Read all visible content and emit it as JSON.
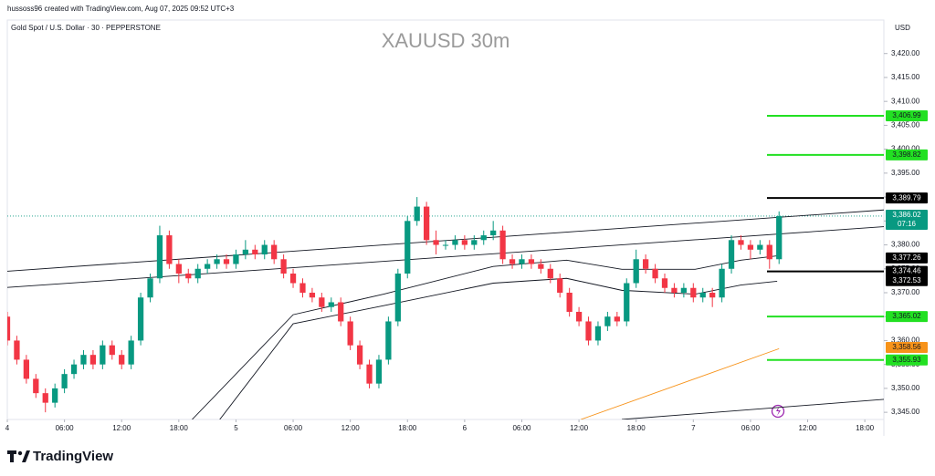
{
  "header": "hussoss96 created with TradingView.com, Aug 07, 2025 09:52 UTC+3",
  "brand": "TradingView",
  "chart_data": {
    "type": "candlestick",
    "title": "XAUUSD 30m",
    "subtitle": "Gold Spot / U.S. Dollar · 30 · PEPPERSTONE",
    "currency": "USD",
    "up_color": "#089981",
    "down_color": "#f23645",
    "open": [
      3365,
      3360,
      3356,
      3352,
      3349,
      3347,
      3350,
      3353,
      3355,
      3357,
      3355,
      3359,
      3357,
      3355,
      3360,
      3369,
      3373,
      3382,
      3376,
      3374,
      3373,
      3375,
      3376,
      3377,
      3376,
      3378,
      3379,
      3378,
      3380,
      3377,
      3374,
      3372,
      3370,
      3369,
      3367,
      3368,
      3364,
      3359,
      3355,
      3351,
      3356,
      3364,
      3374,
      3385,
      3388,
      3381,
      3380,
      3380,
      3381,
      3380,
      3381,
      3382,
      3383,
      3377,
      3376,
      3377,
      3376,
      3375,
      3373,
      3370,
      3366,
      3364,
      3360,
      3363,
      3365,
      3364,
      3372,
      3377,
      3375,
      3373,
      3371,
      3370,
      3371,
      3369,
      3370,
      3369,
      3375,
      3381,
      3380,
      3379,
      3380,
      3377
    ],
    "high": [
      3366,
      3361,
      3357,
      3353,
      3350,
      3351,
      3354,
      3356,
      3358,
      3358,
      3360,
      3360,
      3358,
      3361,
      3370,
      3374,
      3384,
      3383,
      3377,
      3375,
      3376,
      3377,
      3378,
      3378,
      3379,
      3381,
      3380,
      3381,
      3381,
      3378,
      3375,
      3373,
      3371,
      3370,
      3369,
      3369,
      3365,
      3360,
      3356,
      3357,
      3365,
      3375,
      3386,
      3390,
      3389,
      3383,
      3381,
      3382,
      3382,
      3382,
      3383,
      3385,
      3384,
      3378,
      3378,
      3378,
      3377,
      3376,
      3374,
      3371,
      3367,
      3365,
      3364,
      3366,
      3366,
      3373,
      3379,
      3378,
      3376,
      3374,
      3372,
      3372,
      3372,
      3371,
      3371,
      3376,
      3382,
      3382,
      3381,
      3381,
      3381,
      3387
    ],
    "low": [
      3359,
      3355,
      3351,
      3348,
      3345,
      3346,
      3349,
      3352,
      3354,
      3354,
      3354,
      3356,
      3354,
      3354,
      3359,
      3368,
      3372,
      3375,
      3372,
      3372,
      3372,
      3374,
      3375,
      3375,
      3375,
      3377,
      3377,
      3377,
      3376,
      3373,
      3371,
      3369,
      3368,
      3366,
      3366,
      3363,
      3358,
      3354,
      3350,
      3350,
      3355,
      3363,
      3373,
      3384,
      3380,
      3378,
      3379,
      3379,
      3379,
      3379,
      3380,
      3381,
      3376,
      3375,
      3375,
      3375,
      3374,
      3372,
      3369,
      3365,
      3363,
      3359,
      3359,
      3362,
      3363,
      3363,
      3371,
      3374,
      3372,
      3370,
      3369,
      3369,
      3368,
      3368,
      3367,
      3368,
      3374,
      3379,
      3377,
      3378,
      3375,
      3376
    ],
    "close": [
      3360,
      3356,
      3352,
      3349,
      3347,
      3350,
      3353,
      3355,
      3357,
      3355,
      3359,
      3357,
      3355,
      3360,
      3369,
      3373,
      3382,
      3376,
      3374,
      3373,
      3375,
      3376,
      3377,
      3376,
      3378,
      3379,
      3378,
      3380,
      3377,
      3374,
      3372,
      3370,
      3369,
      3367,
      3368,
      3364,
      3359,
      3355,
      3351,
      3356,
      3364,
      3374,
      3385,
      3388,
      3381,
      3380,
      3380,
      3381,
      3380,
      3381,
      3382,
      3383,
      3377,
      3376,
      3377,
      3376,
      3375,
      3373,
      3370,
      3366,
      3364,
      3360,
      3363,
      3365,
      3364,
      3372,
      3377,
      3375,
      3373,
      3371,
      3370,
      3371,
      3369,
      3370,
      3369,
      3375,
      3381,
      3380,
      3379,
      3380,
      3377,
      3386.02
    ],
    "xlim": [
      0,
      92
    ],
    "xticks": [
      {
        "value": 0,
        "label": "4"
      },
      {
        "value": 6,
        "label": "06:00"
      },
      {
        "value": 12,
        "label": "12:00"
      },
      {
        "value": 18,
        "label": "18:00"
      },
      {
        "value": 24,
        "label": "5"
      },
      {
        "value": 30,
        "label": "06:00"
      },
      {
        "value": 36,
        "label": "12:00"
      },
      {
        "value": 42,
        "label": "18:00"
      },
      {
        "value": 48,
        "label": "6"
      },
      {
        "value": 54,
        "label": "06:00"
      },
      {
        "value": 60,
        "label": "12:00"
      },
      {
        "value": 66,
        "label": "18:00"
      },
      {
        "value": 72,
        "label": "7"
      },
      {
        "value": 78,
        "label": "06:00"
      },
      {
        "value": 84,
        "label": "12:00"
      },
      {
        "value": 90,
        "label": "18:00"
      }
    ],
    "ylim": [
      3343.5,
      3427
    ],
    "yticks": [
      {
        "value": 3420,
        "label": "3,420.00"
      },
      {
        "value": 3415,
        "label": "3,415.00"
      },
      {
        "value": 3410,
        "label": "3,410.00"
      },
      {
        "value": 3405,
        "label": "3,405.00"
      },
      {
        "value": 3400,
        "label": "3,400.00"
      },
      {
        "value": 3395,
        "label": "3,395.00"
      },
      {
        "value": 3390,
        "label": "3,390.00"
      },
      {
        "value": 3385,
        "label": "3,385.00"
      },
      {
        "value": 3380,
        "label": "3,380.00"
      },
      {
        "value": 3375,
        "label": "3,375.00"
      },
      {
        "value": 3370,
        "label": "3,370.00"
      },
      {
        "value": 3365,
        "label": "3,365.00"
      },
      {
        "value": 3360,
        "label": "3,360.00"
      },
      {
        "value": 3355,
        "label": "3,355.00"
      },
      {
        "value": 3350,
        "label": "3,350.00"
      },
      {
        "value": 3345,
        "label": "3,345.00"
      }
    ],
    "last_price": {
      "value": 3386.02,
      "label": "3,386.02",
      "countdown": "07:16",
      "color": "#089981"
    },
    "levels": [
      {
        "value": 3406.99,
        "label": "3,406.99",
        "color": "#22e022",
        "text_color": "#131722",
        "line": true
      },
      {
        "value": 3398.82,
        "label": "3,398.82",
        "color": "#22e022",
        "text_color": "#131722",
        "line": true
      },
      {
        "value": 3389.79,
        "label": "3,389.79",
        "color": "#000000",
        "text_color": "#ffffff",
        "line": true
      },
      {
        "value": 3377.26,
        "label": "3,377.26",
        "color": "#000000",
        "text_color": "#ffffff",
        "line": false
      },
      {
        "value": 3374.46,
        "label": "3,374.46",
        "color": "#000000",
        "text_color": "#ffffff",
        "line": true
      },
      {
        "value": 3372.53,
        "label": "3,372.53",
        "color": "#000000",
        "text_color": "#ffffff",
        "line": false
      },
      {
        "value": 3365.02,
        "label": "3,365.02",
        "color": "#22e022",
        "text_color": "#131722",
        "line": true
      },
      {
        "value": 3358.56,
        "label": "3,358.56",
        "color": "#f7931a",
        "text_color": "#131722",
        "line": false
      },
      {
        "value": 3355.93,
        "label": "3,355.93",
        "color": "#22e022",
        "text_color": "#131722",
        "line": true
      }
    ],
    "trendlines": [
      {
        "x": [
          0,
          92
        ],
        "y": [
          3374.5,
          3387.3
        ],
        "color": "#131722"
      },
      {
        "x": [
          0,
          92
        ],
        "y": [
          3371.1,
          3383.8
        ],
        "color": "#131722"
      },
      {
        "x": [
          60.2,
          81
        ],
        "y": [
          3343.5,
          3358.3
        ],
        "color": "#f7931a"
      },
      {
        "x": [
          64.5,
          92
        ],
        "y": [
          3343.5,
          3347.7
        ],
        "color": "#131722"
      },
      {
        "x": [
          19.4,
          30,
          39.5,
          51,
          58.7,
          64.5,
          72.2,
          77,
          80.8
        ],
        "y": [
          3343.5,
          3365.4,
          3369.7,
          3375.5,
          3376.8,
          3374.9,
          3374.9,
          3376.8,
          3377.7
        ],
        "color": "#131722"
      },
      {
        "x": [
          22.3,
          30,
          39.5,
          51,
          58.7,
          64.5,
          72.2,
          77,
          80.8
        ],
        "y": [
          3343.5,
          3363.5,
          3367.3,
          3372,
          3373,
          3370.5,
          3369.7,
          3371.6,
          3372.4
        ],
        "color": "#131722"
      }
    ]
  }
}
